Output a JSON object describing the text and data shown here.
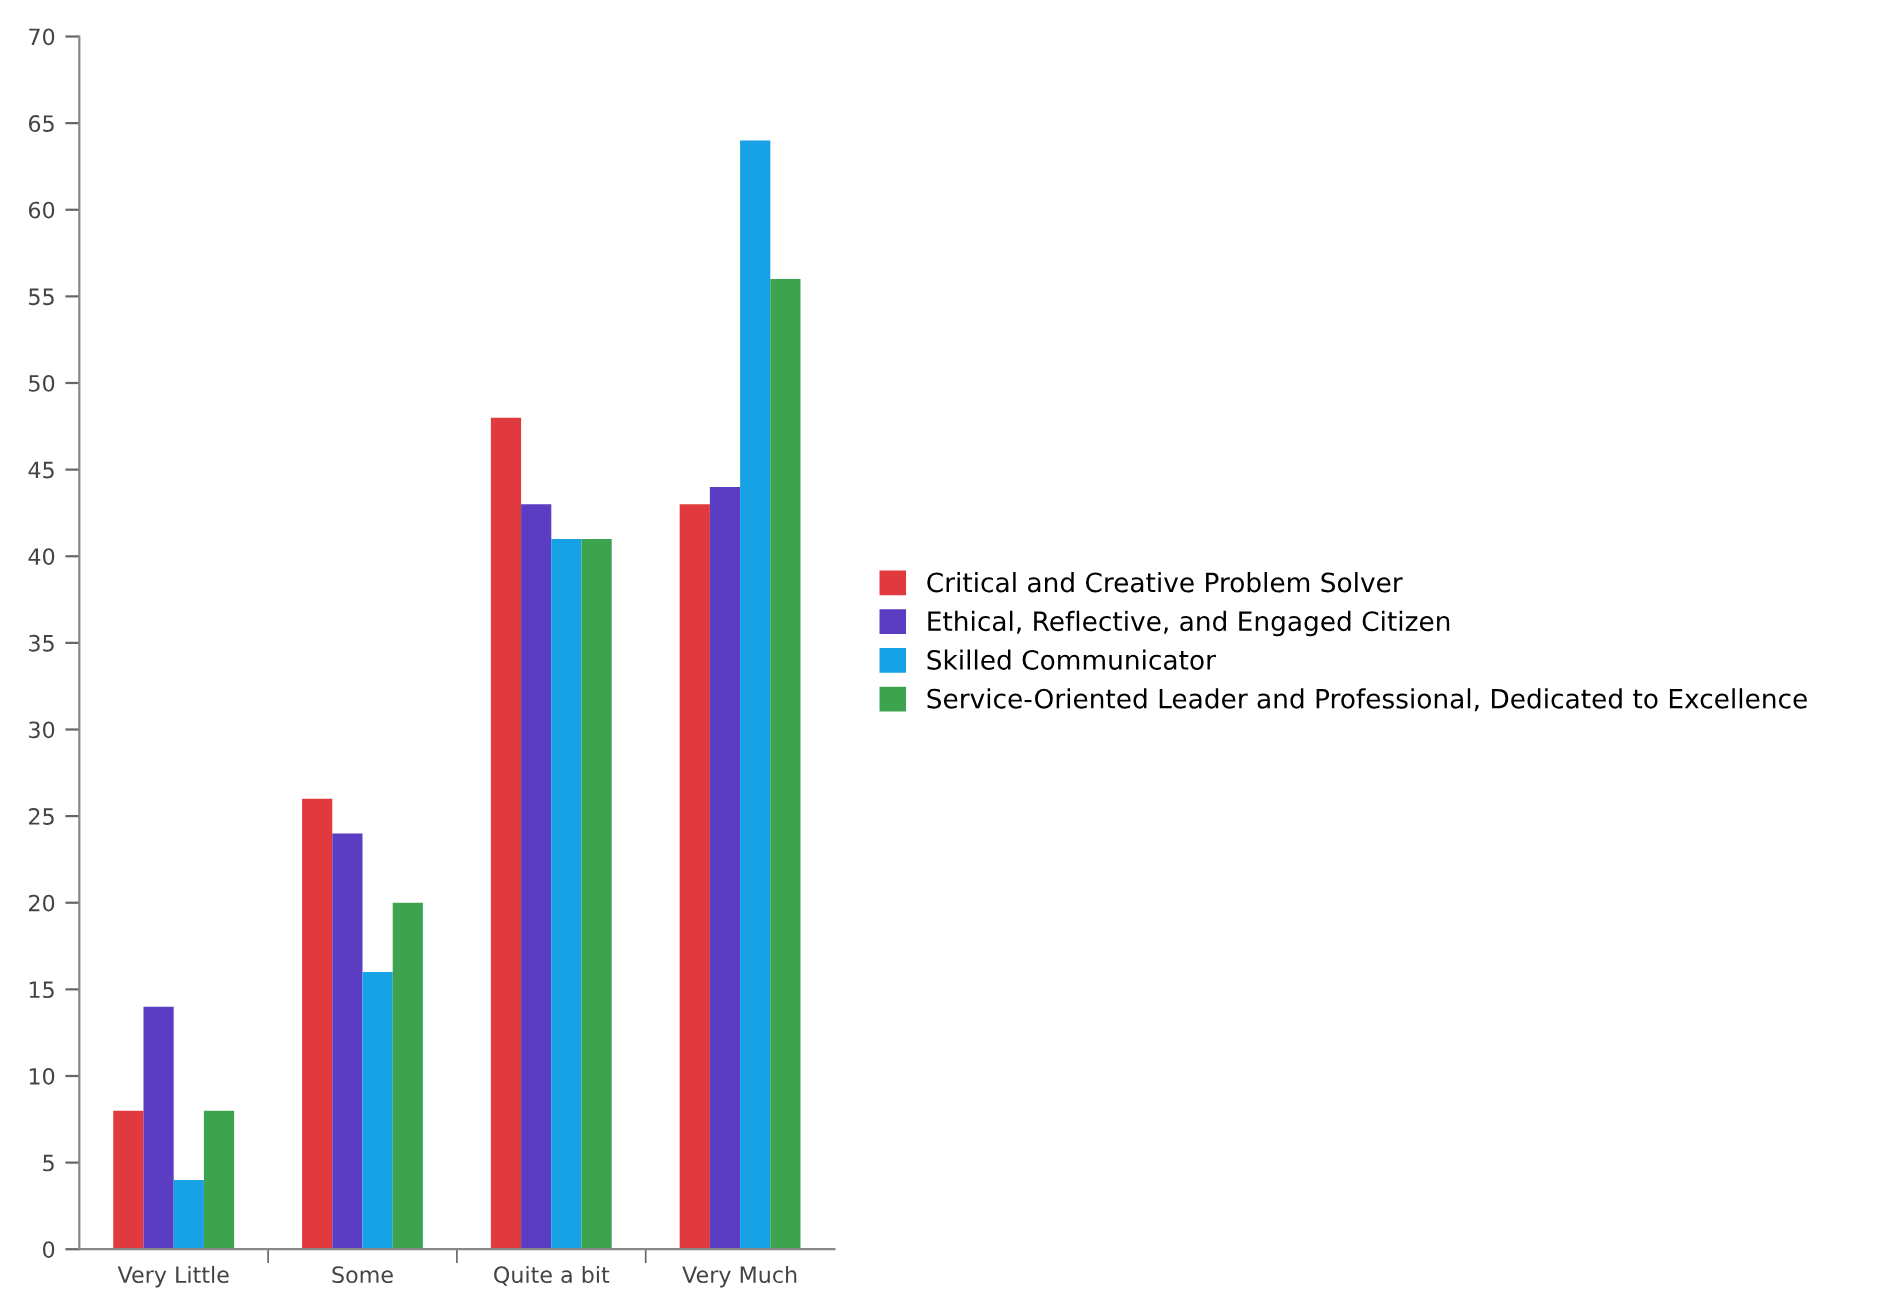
{
  "chart_data": {
    "type": "bar",
    "categories": [
      "Very Little",
      "Some",
      "Quite a bit",
      "Very Much"
    ],
    "series": [
      {
        "name": "Critical and Creative Problem Solver",
        "color": "#e03a3e",
        "values": [
          8,
          26,
          48,
          43
        ]
      },
      {
        "name": "Ethical, Reflective, and Engaged Citizen",
        "color": "#5a3dc2",
        "values": [
          14,
          24,
          43,
          44
        ]
      },
      {
        "name": "Skilled Communicator",
        "color": "#17a2e6",
        "values": [
          4,
          16,
          41,
          64
        ]
      },
      {
        "name": "Service-Oriented Leader and Professional, Dedicated to Excellence",
        "color": "#3ea34f",
        "values": [
          8,
          20,
          41,
          56
        ]
      }
    ],
    "ylim": [
      0,
      70
    ],
    "yticks": [
      0,
      5,
      10,
      15,
      20,
      25,
      30,
      35,
      40,
      45,
      50,
      55,
      60,
      65,
      70
    ],
    "grid": false,
    "legend": "right"
  }
}
